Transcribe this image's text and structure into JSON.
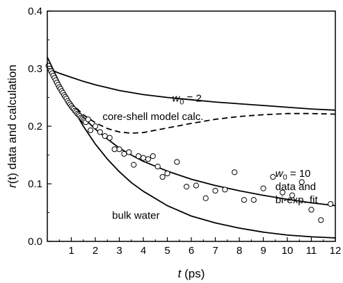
{
  "chart_data": {
    "type": "line",
    "xlabel": "t (ps)",
    "ylabel": "r(t) data and calculation",
    "xlim": [
      0,
      12
    ],
    "ylim": [
      0.0,
      0.4
    ],
    "xticks": [
      1,
      2,
      3,
      4,
      5,
      6,
      7,
      8,
      9,
      10,
      11,
      12
    ],
    "yticks": [
      0.0,
      0.1,
      0.2,
      0.3,
      0.4
    ],
    "grid": false,
    "series": [
      {
        "name": "w0 = 2",
        "style": "solid",
        "x": [
          0,
          0.2,
          0.5,
          1,
          1.5,
          2,
          3,
          4,
          5,
          6,
          7,
          8,
          9,
          10,
          11,
          12
        ],
        "y": [
          0.3,
          0.297,
          0.292,
          0.285,
          0.278,
          0.272,
          0.262,
          0.255,
          0.25,
          0.246,
          0.242,
          0.239,
          0.236,
          0.233,
          0.23,
          0.228
        ]
      },
      {
        "name": "core-shell model calc.",
        "style": "dashed",
        "x": [
          0,
          0.5,
          1,
          1.5,
          2,
          2.5,
          3,
          3.5,
          4,
          4.5,
          5,
          6,
          7,
          8,
          9,
          10,
          11,
          12
        ],
        "y": [
          0.31,
          0.27,
          0.24,
          0.22,
          0.206,
          0.196,
          0.19,
          0.188,
          0.189,
          0.193,
          0.197,
          0.205,
          0.212,
          0.217,
          0.22,
          0.222,
          0.222,
          0.221
        ]
      },
      {
        "name": "w0 = 10 data and bi-exp. fit",
        "style": "solid",
        "x": [
          0,
          0.5,
          1,
          1.5,
          2,
          2.5,
          3,
          3.5,
          4,
          5,
          6,
          7,
          8,
          9,
          10,
          11,
          12
        ],
        "y": [
          0.31,
          0.27,
          0.24,
          0.215,
          0.195,
          0.178,
          0.162,
          0.15,
          0.139,
          0.122,
          0.108,
          0.097,
          0.088,
          0.08,
          0.073,
          0.067,
          0.062
        ]
      },
      {
        "name": "bulk water",
        "style": "solid",
        "x": [
          0,
          0.5,
          1,
          1.5,
          2,
          2.5,
          3,
          3.5,
          4,
          5,
          6,
          7,
          8,
          9,
          10,
          11,
          12
        ],
        "y": [
          0.32,
          0.276,
          0.236,
          0.2,
          0.169,
          0.143,
          0.121,
          0.102,
          0.087,
          0.062,
          0.044,
          0.032,
          0.023,
          0.016,
          0.011,
          0.008,
          0.006
        ]
      }
    ],
    "points": {
      "name": "w0 = 10 data",
      "marker": "open-circle",
      "x": [
        0.05,
        0.1,
        0.15,
        0.2,
        0.25,
        0.3,
        0.35,
        0.4,
        0.45,
        0.5,
        0.55,
        0.6,
        0.65,
        0.7,
        0.75,
        0.8,
        0.85,
        0.9,
        0.95,
        1.0,
        1.05,
        1.1,
        1.15,
        1.2,
        1.25,
        1.3,
        1.35,
        1.4,
        1.45,
        1.5,
        1.55,
        1.6,
        1.7,
        1.8,
        2.0,
        2.2,
        2.4,
        2.6,
        2.8,
        3.0,
        3.2,
        3.4,
        3.6,
        3.8,
        4.0,
        4.2,
        4.4,
        4.6,
        4.8,
        5.0,
        5.4,
        5.8,
        6.2,
        6.6,
        7.0,
        7.4,
        7.8,
        8.2,
        8.6,
        9.0,
        9.4,
        9.8,
        10.2,
        10.6,
        11.0,
        11.4,
        11.8
      ],
      "y": [
        0.305,
        0.3,
        0.296,
        0.292,
        0.288,
        0.284,
        0.28,
        0.276,
        0.272,
        0.268,
        0.265,
        0.261,
        0.258,
        0.254,
        0.251,
        0.248,
        0.244,
        0.241,
        0.238,
        0.235,
        0.232,
        0.23,
        0.227,
        0.225,
        0.222,
        0.22,
        0.218,
        0.215,
        0.213,
        0.211,
        0.209,
        0.207,
        0.212,
        0.193,
        0.2,
        0.19,
        0.183,
        0.18,
        0.16,
        0.16,
        0.152,
        0.155,
        0.133,
        0.148,
        0.145,
        0.143,
        0.148,
        0.13,
        0.112,
        0.118,
        0.138,
        0.095,
        0.097,
        0.075,
        0.088,
        0.09,
        0.12,
        0.072,
        0.072,
        0.092,
        0.112,
        0.085,
        0.08,
        0.103,
        0.055,
        0.037,
        0.065
      ]
    },
    "annotations": [
      {
        "text": "core-shell model calc.",
        "x": 2.3,
        "y": 0.211
      },
      {
        "text": "data and",
        "x": 9.5,
        "y": 0.089
      },
      {
        "text": "bi-exp. fit",
        "x": 9.5,
        "y": 0.066
      },
      {
        "text": "bulk water",
        "x": 2.7,
        "y": 0.039
      }
    ],
    "math_labels": [
      {
        "pre": "w",
        "sub": "0",
        "post": " = 2",
        "x": 5.2,
        "y": 0.243
      },
      {
        "pre": "w",
        "sub": "0",
        "post": " = 10",
        "x": 9.5,
        "y": 0.112
      }
    ]
  }
}
